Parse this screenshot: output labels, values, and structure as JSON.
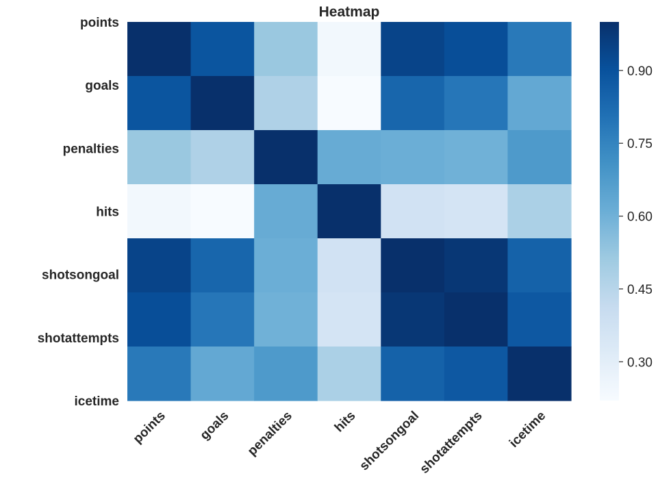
{
  "chart_data": {
    "type": "heatmap",
    "title": "Heatmap",
    "row_labels": [
      "points",
      "goals",
      "penalties",
      "hits",
      "shotsongoal",
      "shotattempts",
      "icetime"
    ],
    "col_labels": [
      "points",
      "goals",
      "penalties",
      "hits",
      "shotsongoal",
      "shotattempts",
      "icetime"
    ],
    "values": [
      [
        1.0,
        0.89,
        0.52,
        0.24,
        0.94,
        0.91,
        0.78
      ],
      [
        0.89,
        1.0,
        0.47,
        0.22,
        0.84,
        0.79,
        0.63
      ],
      [
        0.52,
        0.47,
        1.0,
        0.62,
        0.61,
        0.6,
        0.68
      ],
      [
        0.24,
        0.22,
        0.62,
        1.0,
        0.37,
        0.36,
        0.48
      ],
      [
        0.94,
        0.84,
        0.61,
        0.37,
        1.0,
        0.98,
        0.85
      ],
      [
        0.91,
        0.79,
        0.6,
        0.36,
        0.98,
        1.0,
        0.88
      ],
      [
        0.78,
        0.63,
        0.68,
        0.48,
        0.85,
        0.88,
        1.0
      ]
    ],
    "colormap": "Blues",
    "vmin": 0.22,
    "vmax": 1.0,
    "colorbar_ticks": [
      {
        "value": 0.3,
        "label": "0.30"
      },
      {
        "value": 0.45,
        "label": "0.45"
      },
      {
        "value": 0.6,
        "label": "0.60"
      },
      {
        "value": 0.75,
        "label": "0.75"
      },
      {
        "value": 0.9,
        "label": "0.90"
      }
    ]
  }
}
